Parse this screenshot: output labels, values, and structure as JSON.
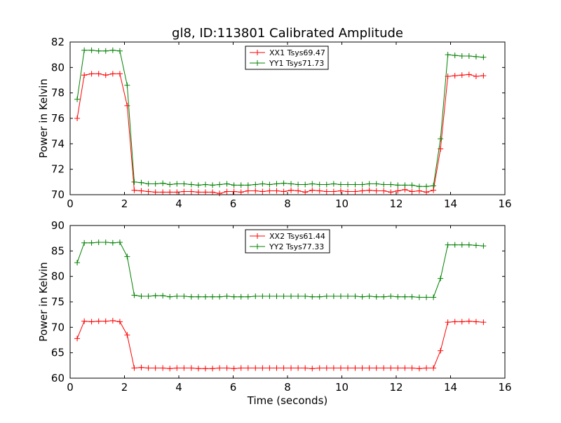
{
  "figure": {
    "title": "gl8, ID:113801 Calibrated Amplitude"
  },
  "chart_data": [
    {
      "type": "line",
      "title": "gl8, ID:113801 Calibrated Amplitude",
      "xlabel": "",
      "ylabel": "Power in Kelvin",
      "xlim": [
        0,
        16
      ],
      "ylim": [
        70,
        82
      ],
      "xticks": [
        0,
        2,
        4,
        6,
        8,
        10,
        12,
        14,
        16
      ],
      "yticks": [
        70,
        72,
        74,
        76,
        78,
        80,
        82
      ],
      "grid": false,
      "legend_position": "top-center",
      "x": [
        0.26,
        0.52,
        0.79,
        1.05,
        1.31,
        1.57,
        1.83,
        2.1,
        2.36,
        2.62,
        2.88,
        3.14,
        3.41,
        3.67,
        3.93,
        4.19,
        4.46,
        4.72,
        4.98,
        5.24,
        5.5,
        5.77,
        6.03,
        6.29,
        6.55,
        6.82,
        7.08,
        7.34,
        7.6,
        7.86,
        8.13,
        8.39,
        8.65,
        8.91,
        9.18,
        9.44,
        9.7,
        9.96,
        10.22,
        10.49,
        10.75,
        11.01,
        11.27,
        11.54,
        11.8,
        12.06,
        12.32,
        12.58,
        12.85,
        13.11,
        13.37,
        13.63,
        13.9,
        14.16,
        14.42,
        14.68,
        14.94,
        15.21
      ],
      "series": [
        {
          "name": "XX1 Tsys69.47",
          "color": "#ff0000",
          "values": [
            76.0,
            79.4,
            79.5,
            79.5,
            79.4,
            79.5,
            79.5,
            77.0,
            70.35,
            70.3,
            70.25,
            70.2,
            70.2,
            70.2,
            70.2,
            70.25,
            70.25,
            70.2,
            70.2,
            70.2,
            70.1,
            70.25,
            70.25,
            70.2,
            70.3,
            70.3,
            70.25,
            70.3,
            70.3,
            70.25,
            70.35,
            70.3,
            70.2,
            70.35,
            70.3,
            70.25,
            70.25,
            70.3,
            70.25,
            70.25,
            70.3,
            70.35,
            70.3,
            70.3,
            70.2,
            70.3,
            70.4,
            70.25,
            70.3,
            70.2,
            70.35,
            73.6,
            79.3,
            79.35,
            79.4,
            79.45,
            79.3,
            79.35
          ]
        },
        {
          "name": "YY1 Tsys71.73",
          "color": "#008000",
          "values": [
            77.5,
            81.35,
            81.35,
            81.3,
            81.3,
            81.35,
            81.3,
            78.6,
            71.0,
            70.95,
            70.85,
            70.85,
            70.9,
            70.8,
            70.85,
            70.85,
            70.8,
            70.75,
            70.8,
            70.75,
            70.8,
            70.85,
            70.75,
            70.75,
            70.75,
            70.8,
            70.85,
            70.8,
            70.85,
            70.9,
            70.85,
            70.8,
            70.8,
            70.85,
            70.8,
            70.8,
            70.85,
            70.8,
            70.8,
            70.8,
            70.8,
            70.85,
            70.85,
            70.8,
            70.8,
            70.75,
            70.75,
            70.75,
            70.65,
            70.65,
            70.7,
            74.4,
            81.0,
            80.95,
            80.9,
            80.9,
            80.85,
            80.8
          ]
        }
      ]
    },
    {
      "type": "line",
      "title": "",
      "xlabel": "Time (seconds)",
      "ylabel": "Power in Kelvin",
      "xlim": [
        0,
        16
      ],
      "ylim": [
        60,
        90
      ],
      "xticks": [
        0,
        2,
        4,
        6,
        8,
        10,
        12,
        14,
        16
      ],
      "yticks": [
        60,
        65,
        70,
        75,
        80,
        85,
        90
      ],
      "grid": false,
      "legend_position": "top-center",
      "x": [
        0.26,
        0.52,
        0.79,
        1.05,
        1.31,
        1.57,
        1.83,
        2.1,
        2.36,
        2.62,
        2.88,
        3.14,
        3.41,
        3.67,
        3.93,
        4.19,
        4.46,
        4.72,
        4.98,
        5.24,
        5.5,
        5.77,
        6.03,
        6.29,
        6.55,
        6.82,
        7.08,
        7.34,
        7.6,
        7.86,
        8.13,
        8.39,
        8.65,
        8.91,
        9.18,
        9.44,
        9.7,
        9.96,
        10.22,
        10.49,
        10.75,
        11.01,
        11.27,
        11.54,
        11.8,
        12.06,
        12.32,
        12.58,
        12.85,
        13.11,
        13.37,
        13.63,
        13.9,
        14.16,
        14.42,
        14.68,
        14.94,
        15.21
      ],
      "series": [
        {
          "name": "XX2 Tsys61.44",
          "color": "#ff0000",
          "values": [
            67.8,
            71.2,
            71.1,
            71.2,
            71.2,
            71.3,
            71.1,
            68.5,
            62.0,
            62.1,
            62.0,
            62.0,
            62.0,
            61.9,
            62.0,
            62.0,
            62.0,
            61.9,
            61.9,
            61.9,
            62.0,
            62.0,
            61.9,
            62.0,
            62.0,
            62.0,
            62.0,
            62.0,
            62.0,
            62.0,
            62.0,
            62.0,
            62.0,
            61.9,
            62.0,
            62.0,
            62.0,
            62.0,
            62.0,
            62.0,
            62.0,
            62.0,
            62.0,
            62.0,
            62.0,
            62.0,
            62.0,
            62.0,
            61.9,
            62.0,
            62.0,
            65.4,
            71.0,
            71.1,
            71.1,
            71.2,
            71.1,
            71.0
          ]
        },
        {
          "name": "YY2 Tsys77.33",
          "color": "#008000",
          "values": [
            82.7,
            86.6,
            86.6,
            86.7,
            86.7,
            86.6,
            86.7,
            83.9,
            76.3,
            76.1,
            76.1,
            76.2,
            76.2,
            76.0,
            76.1,
            76.1,
            76.0,
            76.0,
            76.0,
            76.0,
            76.0,
            76.1,
            76.0,
            76.0,
            76.0,
            76.1,
            76.1,
            76.1,
            76.1,
            76.1,
            76.1,
            76.1,
            76.1,
            76.0,
            76.0,
            76.1,
            76.1,
            76.1,
            76.1,
            76.1,
            76.0,
            76.1,
            76.0,
            76.0,
            76.1,
            76.0,
            76.0,
            76.0,
            75.9,
            75.9,
            75.9,
            79.6,
            86.2,
            86.2,
            86.2,
            86.2,
            86.1,
            86.0
          ]
        }
      ]
    }
  ]
}
